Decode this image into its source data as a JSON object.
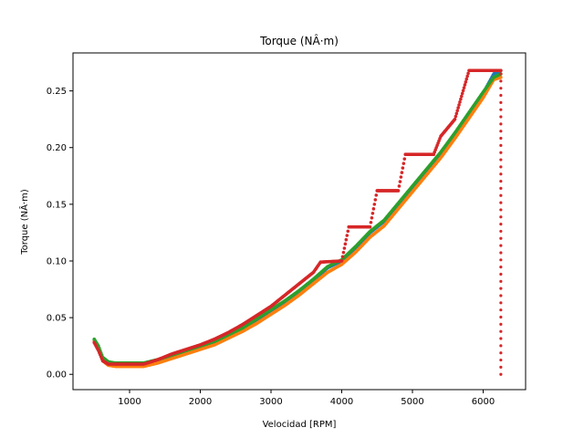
{
  "chart_data": {
    "type": "scatter",
    "title": "Torque (NÂ·m)",
    "xlabel": "Velocidad [RPM]",
    "ylabel": "Torque (NÂ·m)",
    "xlim": [
      200,
      6600
    ],
    "ylim": [
      -0.0135,
      0.2835
    ],
    "x_ticks": [
      1000,
      2000,
      3000,
      4000,
      5000,
      6000
    ],
    "y_ticks": [
      0.0,
      0.05,
      0.1,
      0.15,
      0.2,
      0.25
    ],
    "x_tick_labels": [
      "1000",
      "2000",
      "3000",
      "4000",
      "5000",
      "6000"
    ],
    "y_tick_labels": [
      "0.00",
      "0.05",
      "0.10",
      "0.15",
      "0.20",
      "0.25"
    ],
    "grid": false,
    "legend": "none",
    "series": [
      {
        "color": "#1f77b4",
        "offset_rpm": 0,
        "points": [
          [
            500,
            0.03
          ],
          [
            560,
            0.024
          ],
          [
            620,
            0.014
          ],
          [
            700,
            0.01
          ],
          [
            800,
            0.009
          ],
          [
            1000,
            0.009
          ],
          [
            1200,
            0.009
          ],
          [
            1400,
            0.012
          ],
          [
            1600,
            0.016
          ],
          [
            1800,
            0.02
          ],
          [
            2000,
            0.024
          ],
          [
            2200,
            0.028
          ],
          [
            2400,
            0.034
          ],
          [
            2600,
            0.04
          ],
          [
            2800,
            0.048
          ],
          [
            3000,
            0.056
          ],
          [
            3200,
            0.064
          ],
          [
            3400,
            0.073
          ],
          [
            3600,
            0.083
          ],
          [
            3800,
            0.094
          ],
          [
            4000,
            0.1
          ],
          [
            4200,
            0.112
          ],
          [
            4400,
            0.125
          ],
          [
            4600,
            0.135
          ],
          [
            4800,
            0.15
          ],
          [
            5000,
            0.165
          ],
          [
            5200,
            0.18
          ],
          [
            5400,
            0.195
          ],
          [
            5600,
            0.212
          ],
          [
            5800,
            0.23
          ],
          [
            6000,
            0.248
          ],
          [
            6150,
            0.265
          ],
          [
            6250,
            0.268
          ]
        ]
      },
      {
        "color": "#ff7f0e",
        "offset_rpm": 50,
        "points": [
          [
            500,
            0.029
          ],
          [
            560,
            0.022
          ],
          [
            620,
            0.012
          ],
          [
            700,
            0.008
          ],
          [
            800,
            0.007
          ],
          [
            1000,
            0.007
          ],
          [
            1200,
            0.007
          ],
          [
            1400,
            0.01
          ],
          [
            1600,
            0.014
          ],
          [
            1800,
            0.018
          ],
          [
            2000,
            0.022
          ],
          [
            2200,
            0.026
          ],
          [
            2400,
            0.032
          ],
          [
            2600,
            0.038
          ],
          [
            2800,
            0.045
          ],
          [
            3000,
            0.053
          ],
          [
            3200,
            0.061
          ],
          [
            3400,
            0.07
          ],
          [
            3600,
            0.08
          ],
          [
            3800,
            0.09
          ],
          [
            4000,
            0.097
          ],
          [
            4200,
            0.108
          ],
          [
            4400,
            0.121
          ],
          [
            4600,
            0.131
          ],
          [
            4800,
            0.146
          ],
          [
            5000,
            0.161
          ],
          [
            5200,
            0.176
          ],
          [
            5400,
            0.191
          ],
          [
            5600,
            0.208
          ],
          [
            5800,
            0.226
          ],
          [
            6000,
            0.244
          ],
          [
            6150,
            0.26
          ],
          [
            6250,
            0.262
          ]
        ]
      },
      {
        "color": "#2ca02c",
        "offset_rpm": 30,
        "points": [
          [
            500,
            0.031
          ],
          [
            560,
            0.025
          ],
          [
            620,
            0.015
          ],
          [
            700,
            0.011
          ],
          [
            800,
            0.01
          ],
          [
            1000,
            0.01
          ],
          [
            1200,
            0.01
          ],
          [
            1400,
            0.013
          ],
          [
            1600,
            0.017
          ],
          [
            1800,
            0.021
          ],
          [
            2000,
            0.025
          ],
          [
            2200,
            0.029
          ],
          [
            2400,
            0.035
          ],
          [
            2600,
            0.041
          ],
          [
            2800,
            0.049
          ],
          [
            3000,
            0.057
          ],
          [
            3200,
            0.065
          ],
          [
            3400,
            0.074
          ],
          [
            3600,
            0.084
          ],
          [
            3800,
            0.095
          ],
          [
            4000,
            0.101
          ],
          [
            4200,
            0.113
          ],
          [
            4400,
            0.126
          ],
          [
            4600,
            0.136
          ],
          [
            4800,
            0.151
          ],
          [
            5000,
            0.166
          ],
          [
            5200,
            0.181
          ],
          [
            5400,
            0.196
          ],
          [
            5600,
            0.213
          ],
          [
            5800,
            0.231
          ],
          [
            6000,
            0.249
          ],
          [
            6150,
            0.262
          ],
          [
            6250,
            0.265
          ]
        ]
      },
      {
        "color": "#d62728",
        "offset_rpm": -60,
        "points": [
          [
            500,
            0.028
          ],
          [
            560,
            0.021
          ],
          [
            620,
            0.012
          ],
          [
            700,
            0.009
          ],
          [
            800,
            0.009
          ],
          [
            1000,
            0.009
          ],
          [
            1200,
            0.009
          ],
          [
            1400,
            0.013
          ],
          [
            1600,
            0.018
          ],
          [
            1800,
            0.022
          ],
          [
            2000,
            0.026
          ],
          [
            2200,
            0.031
          ],
          [
            2400,
            0.037
          ],
          [
            2600,
            0.044
          ],
          [
            2800,
            0.052
          ],
          [
            3000,
            0.06
          ],
          [
            3200,
            0.07
          ],
          [
            3400,
            0.08
          ],
          [
            3600,
            0.09
          ],
          [
            3700,
            0.099
          ],
          [
            4000,
            0.1
          ],
          [
            4100,
            0.13
          ],
          [
            4400,
            0.13
          ],
          [
            4500,
            0.162
          ],
          [
            4800,
            0.162
          ],
          [
            4900,
            0.194
          ],
          [
            5300,
            0.194
          ],
          [
            5400,
            0.21
          ],
          [
            5600,
            0.225
          ],
          [
            5800,
            0.268
          ],
          [
            6250,
            0.268
          ]
        ],
        "tail": {
          "x": 6250,
          "y_from": 0.265,
          "y_to": 0.0
        }
      }
    ]
  }
}
